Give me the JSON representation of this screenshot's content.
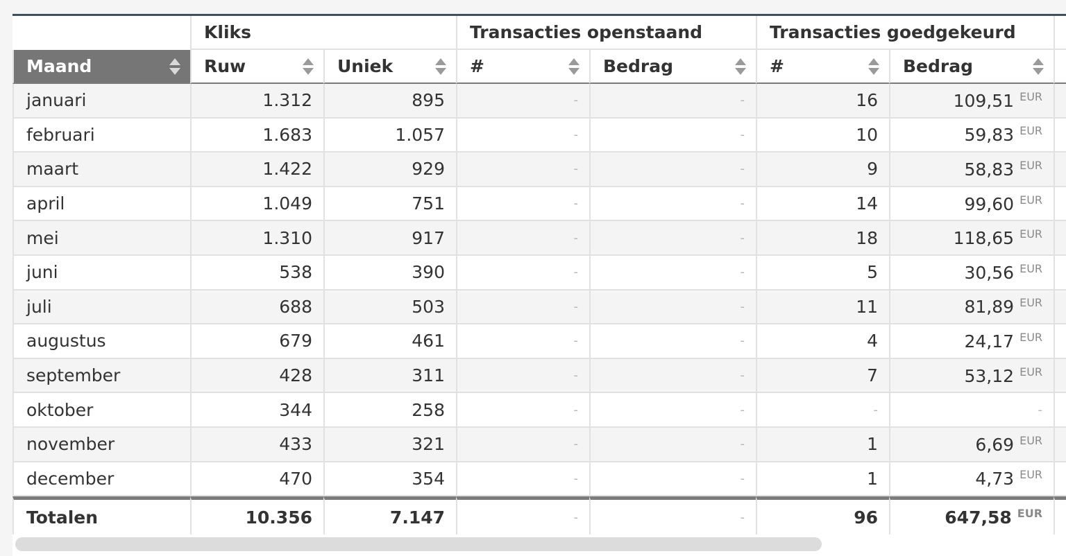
{
  "group_headers": {
    "kliks": "Kliks",
    "open": "Transacties openstaand",
    "approved": "Transacties goedgekeurd"
  },
  "columns": {
    "maand": "Maand",
    "ruw": "Ruw",
    "uniek": "Uniek",
    "open_count": "#",
    "open_amount": "Bedrag",
    "approved_count": "#",
    "approved_amount": "Bedrag"
  },
  "currency": "EUR",
  "rows": [
    {
      "maand": "januari",
      "ruw": "1.312",
      "uniek": "895",
      "open_count": "-",
      "open_amount": "-",
      "approved_count": "16",
      "approved_amount": "109,51"
    },
    {
      "maand": "februari",
      "ruw": "1.683",
      "uniek": "1.057",
      "open_count": "-",
      "open_amount": "-",
      "approved_count": "10",
      "approved_amount": "59,83"
    },
    {
      "maand": "maart",
      "ruw": "1.422",
      "uniek": "929",
      "open_count": "-",
      "open_amount": "-",
      "approved_count": "9",
      "approved_amount": "58,83"
    },
    {
      "maand": "april",
      "ruw": "1.049",
      "uniek": "751",
      "open_count": "-",
      "open_amount": "-",
      "approved_count": "14",
      "approved_amount": "99,60"
    },
    {
      "maand": "mei",
      "ruw": "1.310",
      "uniek": "917",
      "open_count": "-",
      "open_amount": "-",
      "approved_count": "18",
      "approved_amount": "118,65"
    },
    {
      "maand": "juni",
      "ruw": "538",
      "uniek": "390",
      "open_count": "-",
      "open_amount": "-",
      "approved_count": "5",
      "approved_amount": "30,56"
    },
    {
      "maand": "juli",
      "ruw": "688",
      "uniek": "503",
      "open_count": "-",
      "open_amount": "-",
      "approved_count": "11",
      "approved_amount": "81,89"
    },
    {
      "maand": "augustus",
      "ruw": "679",
      "uniek": "461",
      "open_count": "-",
      "open_amount": "-",
      "approved_count": "4",
      "approved_amount": "24,17"
    },
    {
      "maand": "september",
      "ruw": "428",
      "uniek": "311",
      "open_count": "-",
      "open_amount": "-",
      "approved_count": "7",
      "approved_amount": "53,12"
    },
    {
      "maand": "oktober",
      "ruw": "344",
      "uniek": "258",
      "open_count": "-",
      "open_amount": "-",
      "approved_count": "-",
      "approved_amount": "-"
    },
    {
      "maand": "november",
      "ruw": "433",
      "uniek": "321",
      "open_count": "-",
      "open_amount": "-",
      "approved_count": "1",
      "approved_amount": "6,69"
    },
    {
      "maand": "december",
      "ruw": "470",
      "uniek": "354",
      "open_count": "-",
      "open_amount": "-",
      "approved_count": "1",
      "approved_amount": "4,73"
    }
  ],
  "totals": {
    "maand": "Totalen",
    "ruw": "10.356",
    "uniek": "7.147",
    "open_count": "-",
    "open_amount": "-",
    "approved_count": "96",
    "approved_amount": "647,58"
  },
  "icons": {
    "sort": "sort-up-down-icon"
  }
}
